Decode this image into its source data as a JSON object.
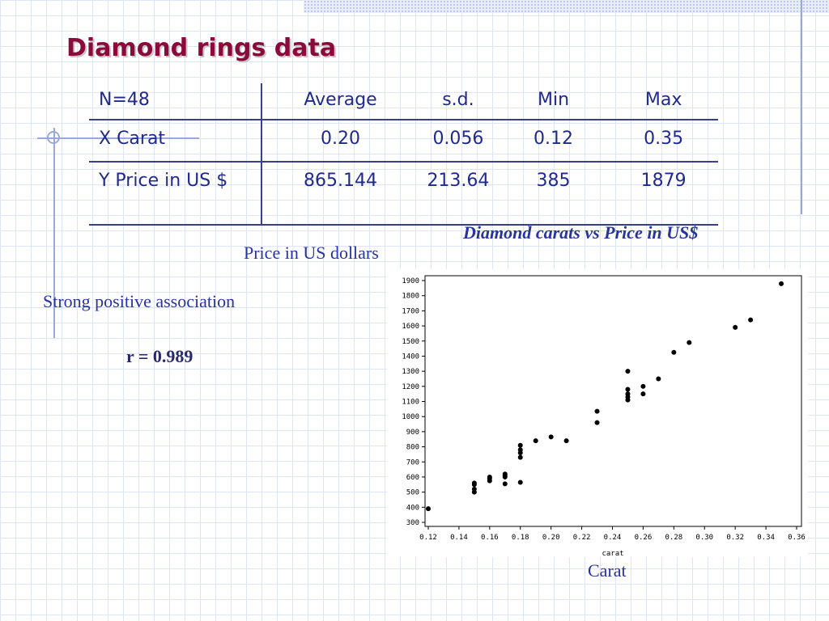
{
  "slide": {
    "title": "Diamond rings data",
    "chart_title": "Diamond carats vs Price in US$",
    "y_caption": "Price in US dollars",
    "x_caption": "Carat",
    "association": "Strong positive association",
    "r_value": "r = 0.989"
  },
  "table": {
    "headers": [
      "N=48",
      "Average",
      "s.d.",
      "Min",
      "Max"
    ],
    "rows": [
      [
        "X Carat",
        "0.20",
        "0.056",
        "0.12",
        "0.35"
      ],
      [
        "Y Price in US $",
        "865.144",
        "213.64",
        "385",
        "1879"
      ]
    ]
  },
  "chart_data": {
    "type": "scatter",
    "title": "",
    "xlabel": "carat",
    "ylabel": "",
    "xlim": [
      0.12,
      0.36
    ],
    "ylim": [
      300,
      1900
    ],
    "x_ticks": [
      0.12,
      0.14,
      0.16,
      0.18,
      0.2,
      0.22,
      0.24,
      0.26,
      0.28,
      0.3,
      0.32,
      0.34,
      0.36
    ],
    "x_tick_labels": [
      "0.12",
      "0.14",
      "0.16",
      "0.18",
      "0.20",
      "0.22",
      "0.24",
      "0.26",
      "0.28",
      "0.30",
      "0.32",
      "0.34",
      "0.36"
    ],
    "y_ticks": [
      300,
      400,
      500,
      600,
      700,
      800,
      900,
      1000,
      1100,
      1200,
      1300,
      1400,
      1500,
      1600,
      1700,
      1800,
      1900
    ],
    "y_tick_labels": [
      "300",
      "400",
      "500",
      "600",
      "700",
      "800",
      "900",
      "1000",
      "1100",
      "1200",
      "1300",
      "1400",
      "1500",
      "1600",
      "1700",
      "1800",
      "1900"
    ],
    "grid": false,
    "points": [
      {
        "x": 0.12,
        "y": 390
      },
      {
        "x": 0.15,
        "y": 500
      },
      {
        "x": 0.15,
        "y": 520
      },
      {
        "x": 0.15,
        "y": 550
      },
      {
        "x": 0.15,
        "y": 560
      },
      {
        "x": 0.16,
        "y": 575
      },
      {
        "x": 0.16,
        "y": 590
      },
      {
        "x": 0.16,
        "y": 600
      },
      {
        "x": 0.17,
        "y": 555
      },
      {
        "x": 0.17,
        "y": 600
      },
      {
        "x": 0.17,
        "y": 610
      },
      {
        "x": 0.17,
        "y": 620
      },
      {
        "x": 0.18,
        "y": 565
      },
      {
        "x": 0.18,
        "y": 730
      },
      {
        "x": 0.18,
        "y": 760
      },
      {
        "x": 0.18,
        "y": 780
      },
      {
        "x": 0.18,
        "y": 810
      },
      {
        "x": 0.19,
        "y": 840
      },
      {
        "x": 0.2,
        "y": 865
      },
      {
        "x": 0.21,
        "y": 840
      },
      {
        "x": 0.23,
        "y": 960
      },
      {
        "x": 0.23,
        "y": 1035
      },
      {
        "x": 0.25,
        "y": 1110
      },
      {
        "x": 0.25,
        "y": 1130
      },
      {
        "x": 0.25,
        "y": 1150
      },
      {
        "x": 0.25,
        "y": 1180
      },
      {
        "x": 0.25,
        "y": 1300
      },
      {
        "x": 0.26,
        "y": 1150
      },
      {
        "x": 0.26,
        "y": 1200
      },
      {
        "x": 0.27,
        "y": 1250
      },
      {
        "x": 0.28,
        "y": 1425
      },
      {
        "x": 0.29,
        "y": 1490
      },
      {
        "x": 0.32,
        "y": 1590
      },
      {
        "x": 0.33,
        "y": 1640
      },
      {
        "x": 0.35,
        "y": 1879
      }
    ]
  }
}
